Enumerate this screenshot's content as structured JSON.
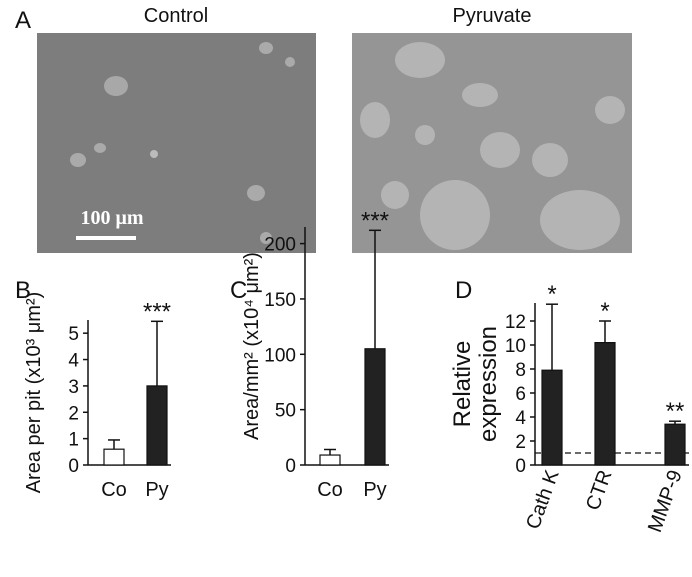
{
  "panel_a": {
    "label": "A",
    "images": [
      "Control",
      "Pyruvate"
    ],
    "scale_bar": "100 μm"
  },
  "chart_data": [
    {
      "type": "bar",
      "label": "B",
      "ylabel": [
        "Area per pit (x10³ μm²)"
      ],
      "categories": [
        "Co",
        "Py"
      ],
      "values": [
        0.6,
        3.0
      ],
      "errors": [
        0.35,
        2.45
      ],
      "colors": [
        "#ffffff",
        "#222222"
      ],
      "significance": [
        null,
        "***"
      ],
      "ylim": [
        0,
        5.5
      ],
      "yticks": [
        0,
        1,
        2,
        3,
        4,
        5
      ]
    },
    {
      "type": "bar",
      "label": "C",
      "ylabel": [
        "Area/mm² (x10⁴ μm²)"
      ],
      "categories": [
        "Co",
        "Py"
      ],
      "values": [
        9,
        105
      ],
      "errors": [
        5,
        107
      ],
      "colors": [
        "#ffffff",
        "#222222"
      ],
      "significance": [
        null,
        "***"
      ],
      "ylim": [
        0,
        215
      ],
      "yticks": [
        0,
        50,
        100,
        150,
        200
      ]
    },
    {
      "type": "bar",
      "label": "D",
      "ylabel": [
        "Relative",
        "expression"
      ],
      "categories": [
        "Cath K",
        "CTR",
        "MMP-9"
      ],
      "values": [
        7.9,
        10.2,
        3.4
      ],
      "errors": [
        5.5,
        1.8,
        0.25
      ],
      "colors": [
        "#222222",
        "#222222",
        "#222222"
      ],
      "significance": [
        "*",
        "*",
        "**"
      ],
      "reference_line": 1,
      "ylim": [
        0,
        13.5
      ],
      "yticks": [
        0,
        2,
        4,
        6,
        8,
        10,
        12
      ]
    }
  ]
}
